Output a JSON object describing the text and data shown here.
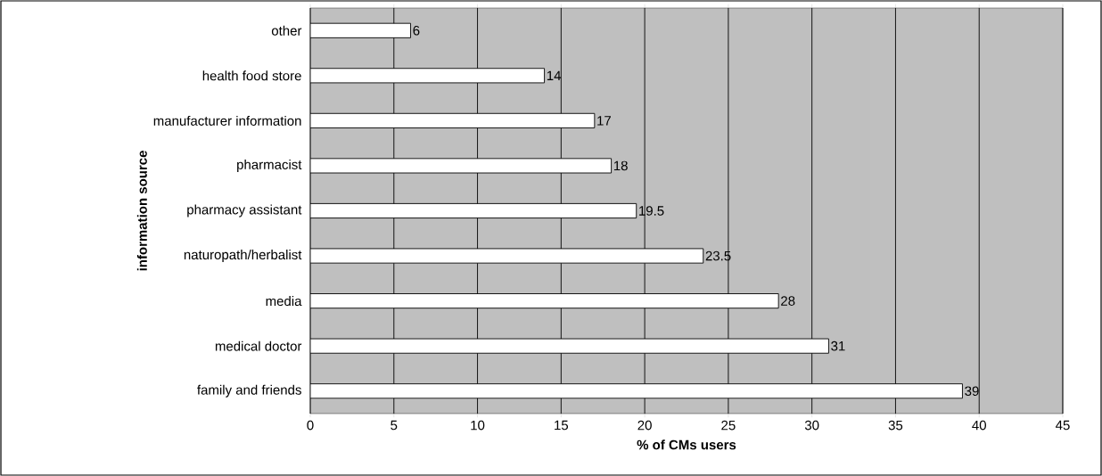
{
  "chart_data": {
    "type": "bar",
    "orientation": "horizontal",
    "xlabel": "% of CMs users",
    "ylabel": "information source",
    "categories": [
      "other",
      "health food store",
      "manufacturer information",
      "pharmacist",
      "pharmacy assistant",
      "naturopath/herbalist",
      "media",
      "medical doctor",
      "family and friends"
    ],
    "values": [
      6,
      14,
      17,
      18,
      19.5,
      23.5,
      28,
      31,
      39
    ],
    "color": "#ffffff",
    "xlim": [
      0,
      45
    ],
    "xticks": [
      0,
      5,
      10,
      15,
      20,
      25,
      30,
      35,
      40,
      45
    ],
    "grid": "x",
    "data_labels": true
  }
}
